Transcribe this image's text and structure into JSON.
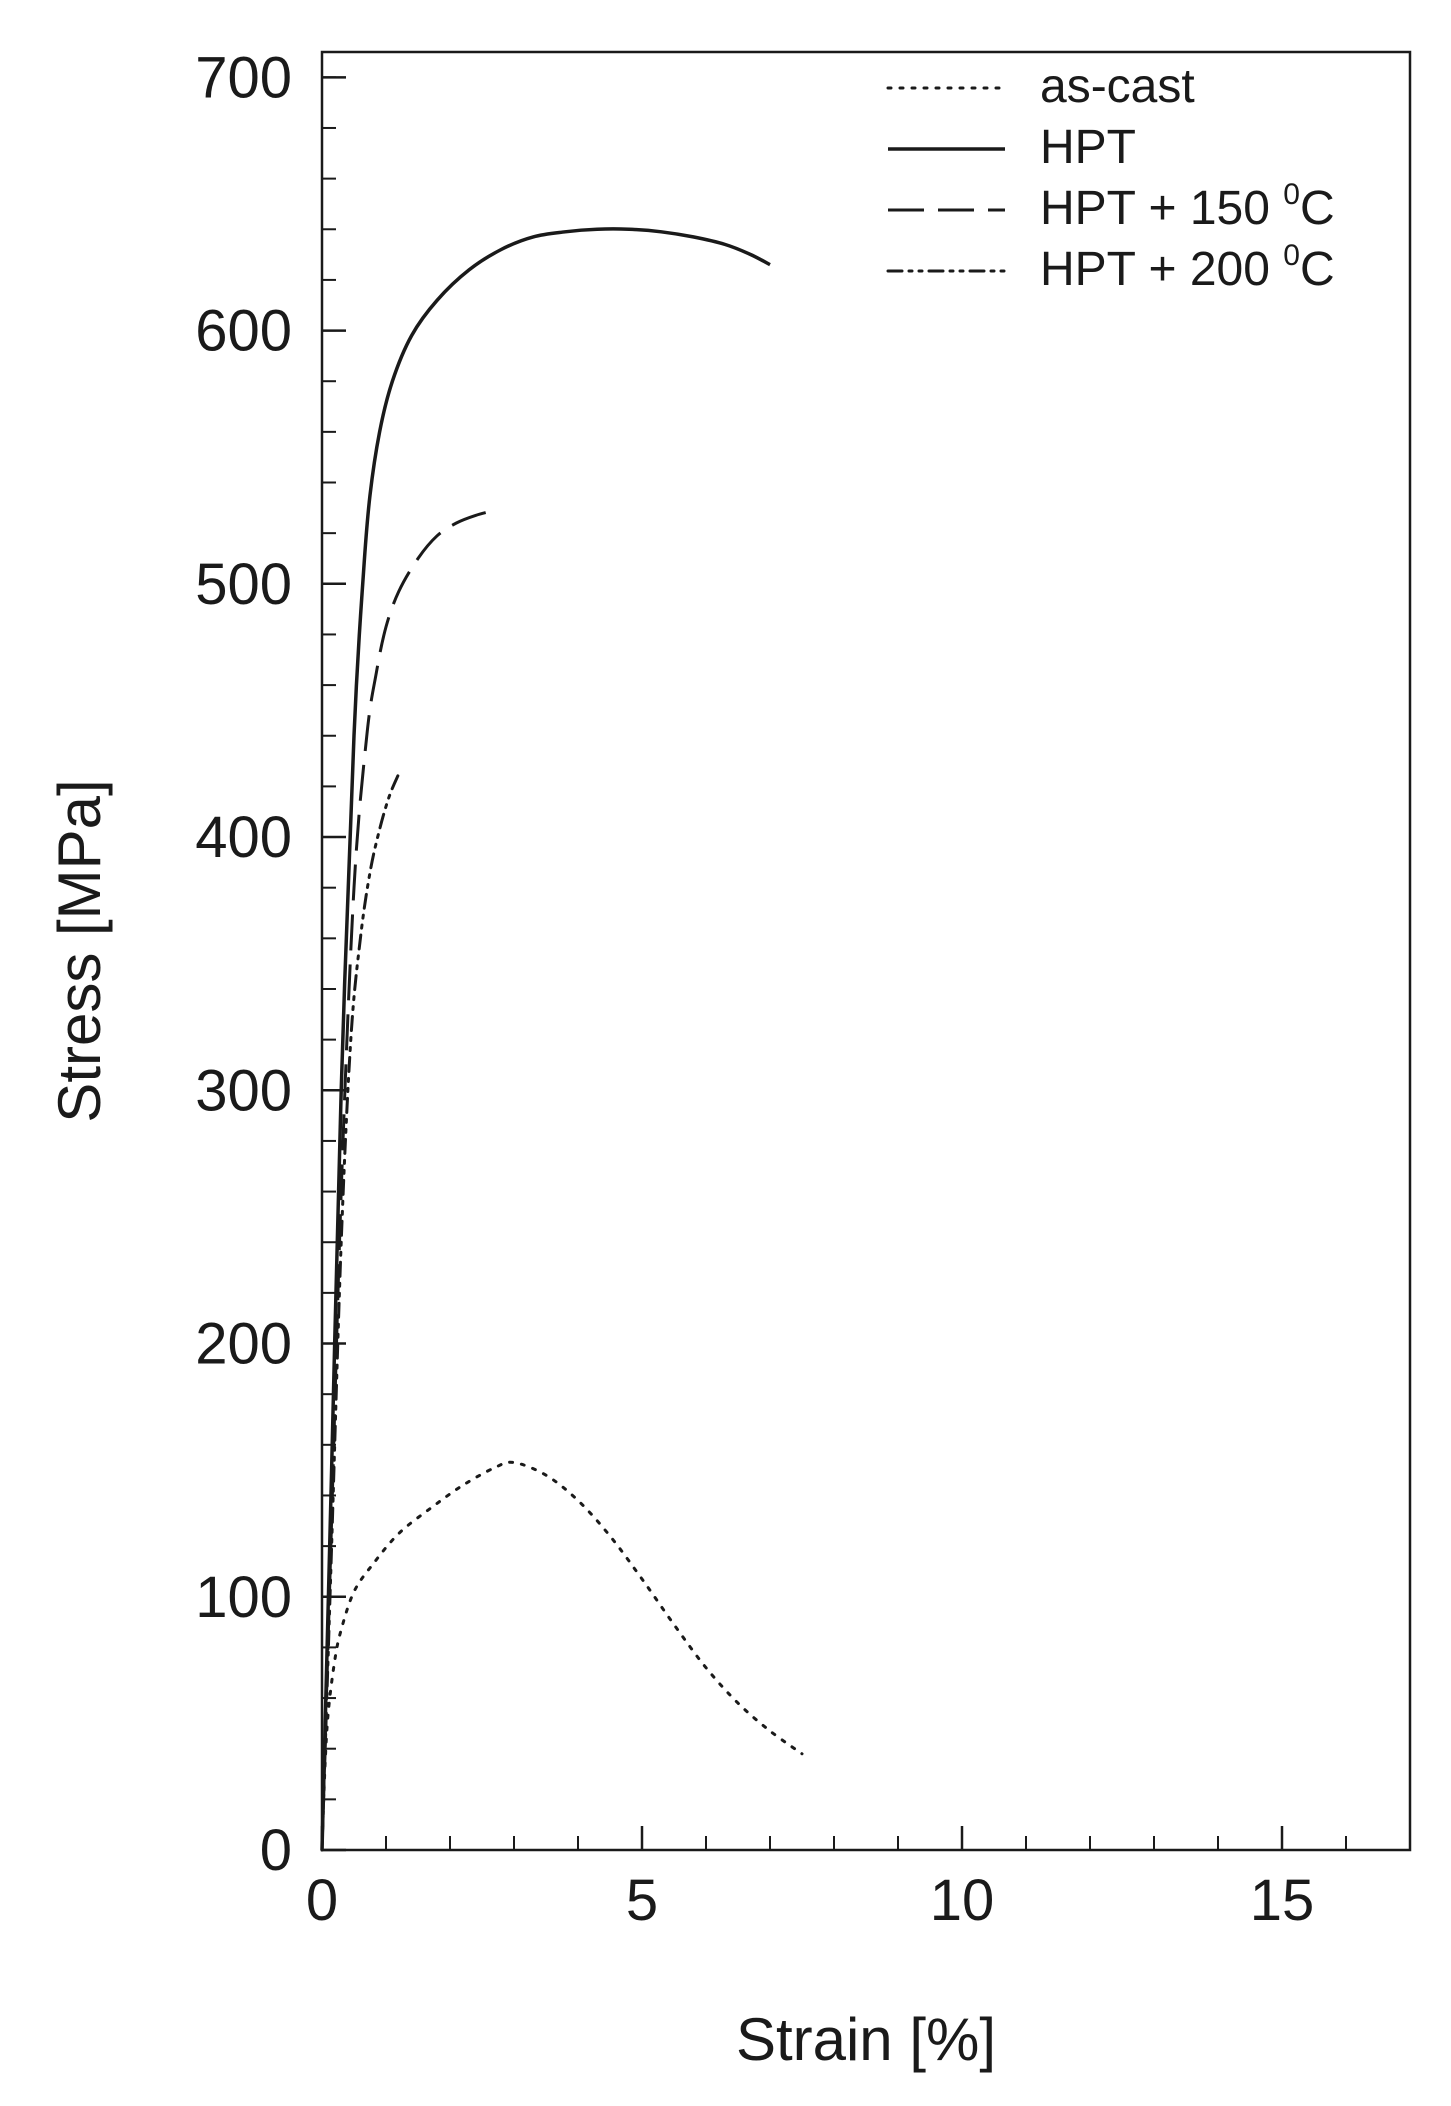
{
  "chart_data": {
    "type": "line",
    "title": "",
    "xlabel": "Strain [%]",
    "ylabel": "Stress [MPa]",
    "xlim": [
      0,
      17
    ],
    "ylim": [
      0,
      710
    ],
    "x_ticks": [
      0,
      5,
      10,
      15
    ],
    "x_tick_labels": [
      "0",
      "5",
      "10",
      "15"
    ],
    "x_minor_step": 1,
    "y_ticks": [
      0,
      100,
      200,
      300,
      400,
      500,
      600,
      700
    ],
    "y_tick_labels": [
      "0",
      "100",
      "200",
      "300",
      "400",
      "500",
      "600",
      "700"
    ],
    "y_minor_step": 20,
    "grid": false,
    "legend_position": "top-right",
    "series": [
      {
        "name": "as-cast",
        "legend_main": "as-cast",
        "legend_sup": "",
        "legend_tail": "",
        "style": "dotted",
        "color": "#1a1a1a",
        "x": [
          0,
          0.05,
          0.1,
          0.2,
          0.3,
          0.5,
          0.8,
          1.2,
          1.7,
          2.2,
          2.7,
          3.0,
          3.5,
          4.0,
          4.5,
          5.0,
          5.5,
          6.0,
          6.5,
          7.0,
          7.5
        ],
        "y": [
          0,
          35,
          55,
          75,
          87,
          102,
          113,
          125,
          135,
          144,
          151,
          153,
          148,
          138,
          124,
          107,
          89,
          72,
          58,
          47,
          38
        ]
      },
      {
        "name": "HPT",
        "legend_main": "HPT",
        "legend_sup": "",
        "legend_tail": "",
        "style": "solid",
        "color": "#1a1a1a",
        "x": [
          0,
          0.15,
          0.3,
          0.5,
          0.65,
          0.75,
          0.9,
          1.1,
          1.4,
          1.8,
          2.3,
          2.8,
          3.3,
          3.8,
          4.3,
          4.8,
          5.3,
          5.8,
          6.3,
          6.7,
          7.0
        ],
        "y": [
          0,
          150,
          300,
          440,
          505,
          535,
          560,
          580,
          598,
          612,
          624,
          632,
          637,
          639,
          640,
          640,
          639,
          637,
          634,
          630,
          626
        ]
      },
      {
        "name": "HPT + 150 °C",
        "legend_main": "HPT + 150 ",
        "legend_sup": "0",
        "legend_tail": "C",
        "style": "dashed",
        "color": "#1a1a1a",
        "x": [
          0,
          0.15,
          0.3,
          0.5,
          0.7,
          0.85,
          1.0,
          1.2,
          1.5,
          1.8,
          2.1,
          2.4,
          2.7
        ],
        "y": [
          0,
          130,
          260,
          380,
          440,
          465,
          483,
          497,
          510,
          519,
          524,
          527,
          529
        ]
      },
      {
        "name": "HPT + 200 °C",
        "legend_main": "HPT + 200 ",
        "legend_sup": "0",
        "legend_tail": "C",
        "style": "dash-dot-dot",
        "color": "#1a1a1a",
        "x": [
          0,
          0.15,
          0.3,
          0.45,
          0.6,
          0.75,
          0.9,
          1.05,
          1.2
        ],
        "y": [
          0,
          120,
          240,
          320,
          360,
          386,
          403,
          416,
          425
        ]
      }
    ]
  }
}
